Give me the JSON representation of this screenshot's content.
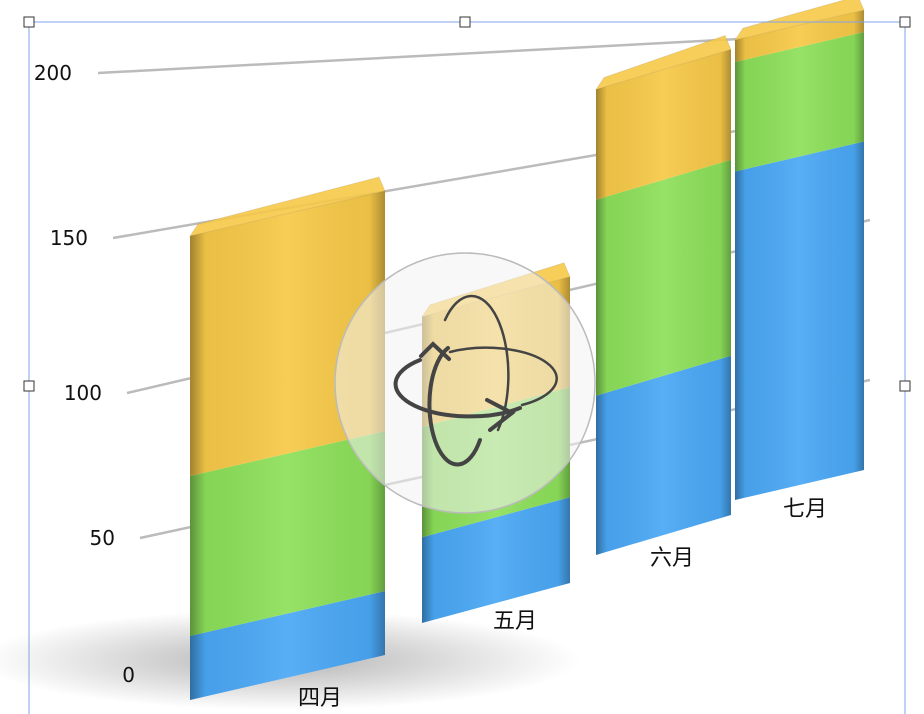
{
  "chart_data": {
    "type": "bar",
    "stacked": true,
    "three_d": true,
    "categories": [
      "四月",
      "五月",
      "六月",
      "七月"
    ],
    "series": [
      {
        "values": [
          20,
          35,
          65,
          150
        ],
        "color": "#4aa8f5"
      },
      {
        "values": [
          50,
          45,
          80,
          50
        ],
        "color": "#8de05a"
      },
      {
        "values": [
          75,
          45,
          45,
          10
        ],
        "color": "#f7c948"
      }
    ],
    "yticks": [
      "0",
      "50",
      "100",
      "150",
      "200"
    ],
    "ylim": [
      0,
      200
    ],
    "grid": true,
    "legend": "none"
  },
  "editor": {
    "selected": true,
    "rotate_control": "rotate-3d-icon"
  }
}
